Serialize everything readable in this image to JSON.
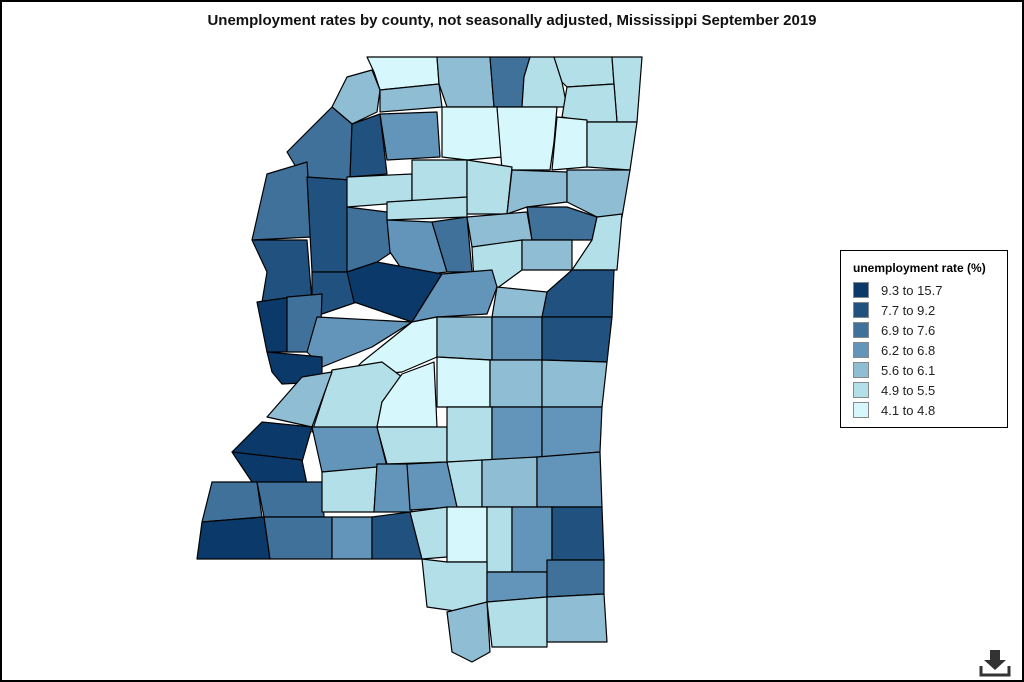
{
  "header": {
    "title": "Unemployment rates by county, not seasonally adjusted, Mississippi September 2019"
  },
  "legend": {
    "title": "unemployment rate (%)",
    "items": [
      {
        "label": "9.3 to 15.7",
        "color": "#0b3a6a"
      },
      {
        "label": "7.7 to 9.2",
        "color": "#21527f"
      },
      {
        "label": "6.9 to 7.6",
        "color": "#40719a"
      },
      {
        "label": "6.2 to 6.8",
        "color": "#6394b9"
      },
      {
        "label": "5.6 to 6.1",
        "color": "#8fbdd3"
      },
      {
        "label": "4.9 to 5.5",
        "color": "#b3dfe8"
      },
      {
        "label": "4.1 to 4.8",
        "color": "#d6f8fc"
      }
    ]
  }
}
